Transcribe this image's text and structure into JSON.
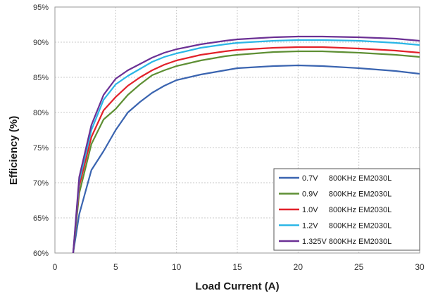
{
  "chart_data": {
    "type": "line",
    "xlabel": "Load Current (A)",
    "ylabel": "Efficiency (%)",
    "xlim": [
      0,
      30
    ],
    "ylim": [
      60,
      95
    ],
    "x_ticks": [
      0,
      5,
      10,
      15,
      20,
      25,
      30
    ],
    "x_tick_labels": [
      "0",
      "5",
      "10",
      "15",
      "20",
      "25",
      "30"
    ],
    "y_ticks": [
      60,
      65,
      70,
      75,
      80,
      85,
      90,
      95
    ],
    "y_tick_labels": [
      "60%",
      "65%",
      "70%",
      "75%",
      "80%",
      "85%",
      "90%",
      "95%"
    ],
    "grid": true,
    "legend_position": "bottom-right",
    "series": [
      {
        "name": "0.7V     800KHz EM2030L",
        "color": "#3A64B0",
        "x": [
          1.5,
          2,
          3,
          4,
          5,
          6,
          7,
          8,
          9,
          10,
          12,
          14,
          15,
          18,
          20,
          22,
          25,
          28,
          30
        ],
        "y": [
          60,
          65.5,
          71.8,
          74.5,
          77.5,
          80,
          81.5,
          82.8,
          83.8,
          84.6,
          85.4,
          86,
          86.3,
          86.6,
          86.7,
          86.6,
          86.3,
          85.9,
          85.5
        ]
      },
      {
        "name": "0.9V     800KHz EM2030L",
        "color": "#5E8F34",
        "x": [
          1.5,
          2,
          3,
          4,
          5,
          6,
          7,
          8,
          9,
          10,
          12,
          14,
          15,
          18,
          20,
          22,
          25,
          28,
          30
        ],
        "y": [
          60,
          68.5,
          75.5,
          79,
          80.5,
          82.5,
          84,
          85.3,
          86,
          86.6,
          87.4,
          88,
          88.2,
          88.6,
          88.7,
          88.7,
          88.5,
          88.2,
          87.9
        ]
      },
      {
        "name": "1.0V     800KHz EM2030L",
        "color": "#E2212A",
        "x": [
          1.5,
          2,
          3,
          4,
          5,
          6,
          7,
          8,
          9,
          10,
          12,
          14,
          15,
          18,
          20,
          22,
          25,
          28,
          30
        ],
        "y": [
          60,
          69.5,
          76.5,
          80.3,
          82.2,
          83.8,
          85,
          86,
          86.8,
          87.4,
          88.2,
          88.7,
          88.9,
          89.2,
          89.3,
          89.3,
          89.1,
          88.8,
          88.5
        ]
      },
      {
        "name": "1.2V     800KHz EM2030L",
        "color": "#2AB6E6",
        "x": [
          1.5,
          2,
          3,
          4,
          5,
          6,
          7,
          8,
          9,
          10,
          12,
          14,
          15,
          18,
          20,
          22,
          25,
          28,
          30
        ],
        "y": [
          60,
          70.2,
          77.5,
          81.8,
          84,
          85.2,
          86.2,
          87.2,
          87.9,
          88.4,
          89.2,
          89.7,
          89.9,
          90.2,
          90.3,
          90.3,
          90.2,
          89.9,
          89.6
        ]
      },
      {
        "name": "1.325V 800KHz EM2030L",
        "color": "#6B3094",
        "x": [
          1.5,
          2,
          3,
          4,
          5,
          6,
          7,
          8,
          9,
          10,
          12,
          14,
          15,
          18,
          20,
          22,
          25,
          28,
          30
        ],
        "y": [
          60,
          70.8,
          78.2,
          82.5,
          84.8,
          86,
          86.9,
          87.8,
          88.5,
          89,
          89.7,
          90.2,
          90.4,
          90.7,
          90.8,
          90.8,
          90.7,
          90.5,
          90.2
        ]
      }
    ]
  }
}
